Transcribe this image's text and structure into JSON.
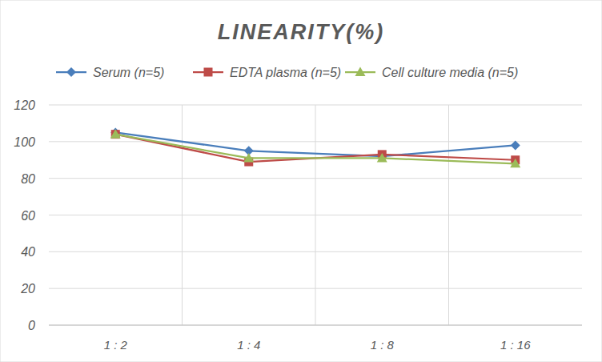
{
  "chart_data": {
    "type": "line",
    "title": "LINEARITY(%)",
    "categories": [
      "1 : 2",
      "1 : 4",
      "1 : 8",
      "1 : 16"
    ],
    "series": [
      {
        "name": "Serum (n=5)",
        "color": "#4a7ebb",
        "marker": "diamond",
        "values": [
          105,
          95,
          92,
          98
        ]
      },
      {
        "name": "EDTA plasma (n=5)",
        "color": "#be4b48",
        "marker": "square",
        "values": [
          104,
          89,
          93,
          90
        ]
      },
      {
        "name": "Cell culture media (n=5)",
        "color": "#9bbb59",
        "marker": "triangle",
        "values": [
          104,
          91,
          91,
          88
        ]
      }
    ],
    "ylim": [
      0,
      120
    ],
    "yticks": [
      0,
      20,
      40,
      60,
      80,
      100,
      120
    ],
    "grid": true,
    "legend": "top"
  }
}
